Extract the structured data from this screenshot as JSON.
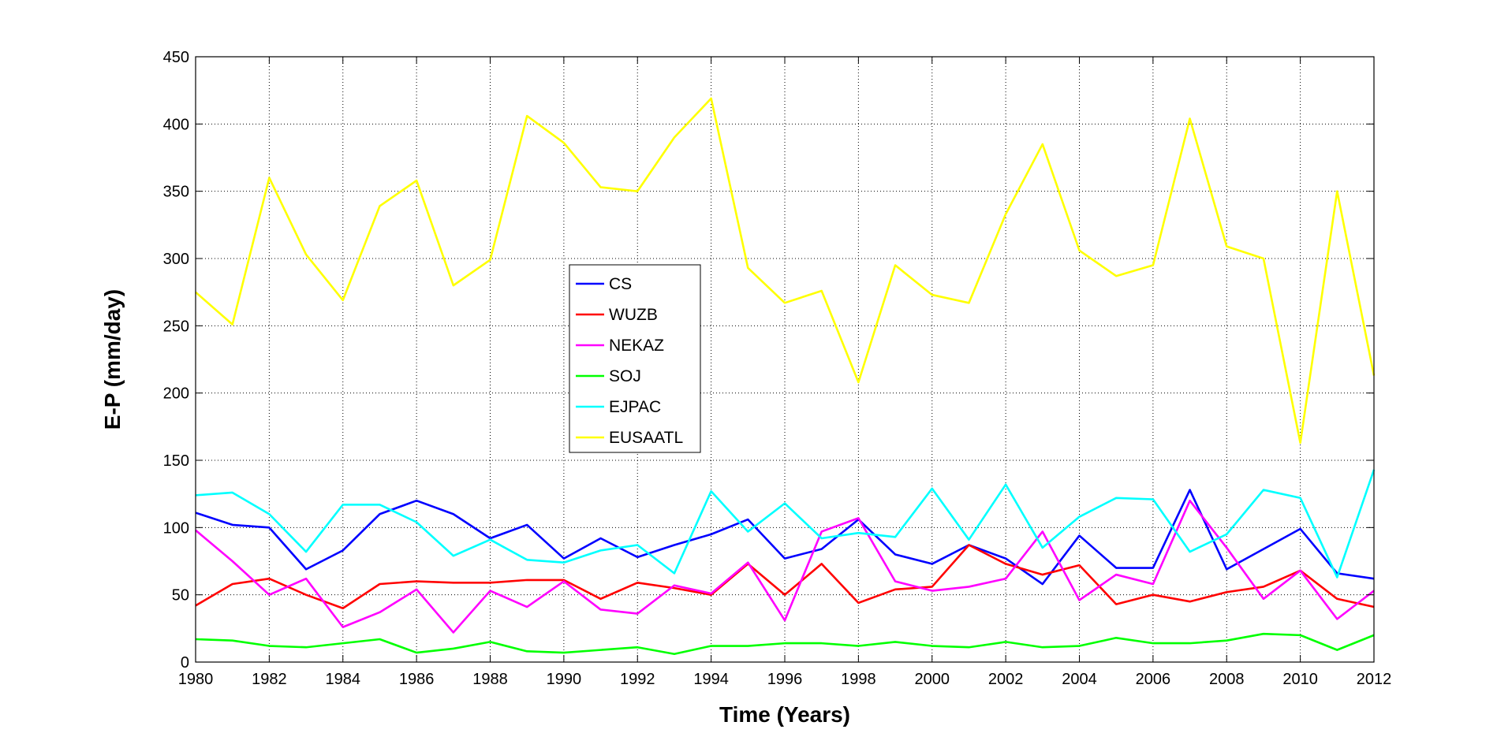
{
  "chart_data": {
    "type": "line",
    "title": "",
    "xlabel": "Time (Years)",
    "ylabel": "E-P (mm/day)",
    "xlim": [
      1980,
      2012
    ],
    "ylim": [
      0,
      450
    ],
    "x_ticks": [
      1980,
      1982,
      1984,
      1986,
      1988,
      1990,
      1992,
      1994,
      1996,
      1998,
      2000,
      2002,
      2004,
      2006,
      2008,
      2010,
      2012
    ],
    "y_ticks": [
      0,
      50,
      100,
      150,
      200,
      250,
      300,
      350,
      400,
      450
    ],
    "grid": true,
    "legend_position": "center-left",
    "x": [
      1980,
      1981,
      1982,
      1983,
      1984,
      1985,
      1986,
      1987,
      1988,
      1989,
      1990,
      1991,
      1992,
      1993,
      1994,
      1995,
      1996,
      1997,
      1998,
      1999,
      2000,
      2001,
      2002,
      2003,
      2004,
      2005,
      2006,
      2007,
      2008,
      2009,
      2010,
      2011,
      2012
    ],
    "series": [
      {
        "name": "CS",
        "color": "#0000ff",
        "values": [
          111,
          102,
          100,
          69,
          83,
          110,
          120,
          110,
          92,
          102,
          77,
          92,
          78,
          87,
          95,
          106,
          77,
          84,
          106,
          80,
          73,
          87,
          77,
          58,
          94,
          70,
          70,
          128,
          69,
          84,
          99,
          66,
          62
        ]
      },
      {
        "name": "WUZB",
        "color": "#ff0000",
        "values": [
          42,
          58,
          62,
          50,
          40,
          58,
          60,
          59,
          59,
          61,
          61,
          47,
          59,
          55,
          50,
          73,
          50,
          73,
          44,
          54,
          56,
          87,
          73,
          65,
          72,
          43,
          50,
          45,
          52,
          56,
          68,
          47,
          41
        ]
      },
      {
        "name": "NEKAZ",
        "color": "#ff00ff",
        "values": [
          98,
          75,
          50,
          62,
          26,
          37,
          54,
          22,
          53,
          41,
          60,
          39,
          36,
          57,
          51,
          74,
          31,
          97,
          107,
          60,
          53,
          56,
          62,
          97,
          46,
          65,
          58,
          120,
          85,
          47,
          68,
          32,
          53
        ]
      },
      {
        "name": "SOJ",
        "color": "#00ff00",
        "values": [
          17,
          16,
          12,
          11,
          14,
          17,
          7,
          10,
          15,
          8,
          7,
          9,
          11,
          6,
          12,
          12,
          14,
          14,
          12,
          15,
          12,
          11,
          15,
          11,
          12,
          18,
          14,
          14,
          16,
          21,
          20,
          9,
          20
        ]
      },
      {
        "name": "EJPAC",
        "color": "#00ffff",
        "values": [
          124,
          126,
          110,
          82,
          117,
          117,
          104,
          79,
          91,
          76,
          74,
          83,
          87,
          66,
          127,
          97,
          118,
          92,
          96,
          93,
          129,
          91,
          132,
          85,
          108,
          122,
          121,
          82,
          95,
          128,
          122,
          63,
          143
        ]
      },
      {
        "name": "EUSAATL",
        "color": "#ffff00",
        "values": [
          275,
          251,
          360,
          303,
          269,
          339,
          358,
          280,
          299,
          406,
          386,
          353,
          350,
          390,
          419,
          293,
          267,
          276,
          208,
          295,
          273,
          267,
          333,
          385,
          306,
          287,
          295,
          404,
          309,
          300,
          163,
          350,
          213
        ]
      }
    ]
  }
}
